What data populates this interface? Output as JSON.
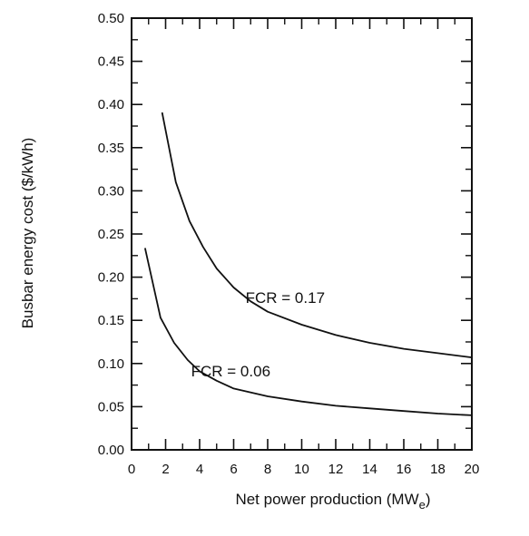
{
  "chart_data": {
    "type": "line",
    "title": "",
    "xlabel_main": "Net power production (MW",
    "xlabel_sub": "e",
    "xlabel_end": ")",
    "ylabel": "Busbar energy cost ($/kWh)",
    "xlim": [
      0,
      20
    ],
    "ylim": [
      0,
      0.5
    ],
    "x_ticks": [
      "0",
      "2",
      "4",
      "6",
      "8",
      "10",
      "12",
      "14",
      "16",
      "18",
      "20"
    ],
    "y_ticks": [
      "0.00",
      "0.05",
      "0.10",
      "0.15",
      "0.20",
      "0.25",
      "0.30",
      "0.35",
      "0.40",
      "0.45",
      "0.50"
    ],
    "grid": false,
    "series": [
      {
        "name": "FCR = 0.17",
        "x": [
          1.8,
          2.6,
          3.4,
          4.2,
          5.0,
          6.0,
          7.0,
          8.0,
          10.0,
          12.0,
          14.0,
          16.0,
          18.0,
          20.0
        ],
        "y": [
          0.39,
          0.31,
          0.265,
          0.235,
          0.21,
          0.188,
          0.172,
          0.16,
          0.145,
          0.133,
          0.124,
          0.117,
          0.112,
          0.107
        ]
      },
      {
        "name": "FCR = 0.06",
        "x": [
          0.8,
          1.0,
          1.7,
          2.5,
          3.3,
          4.0,
          5.0,
          6.0,
          8.0,
          10.0,
          12.0,
          14.0,
          16.0,
          18.0,
          20.0
        ],
        "y": [
          0.233,
          0.215,
          0.153,
          0.124,
          0.104,
          0.091,
          0.08,
          0.071,
          0.062,
          0.056,
          0.051,
          0.048,
          0.045,
          0.042,
          0.04
        ]
      }
    ],
    "annotations": [
      {
        "text": "FCR = 0.17",
        "x": 6.7,
        "y": 0.17
      },
      {
        "text": "FCR = 0.06",
        "x": 3.5,
        "y": 0.085
      }
    ]
  }
}
